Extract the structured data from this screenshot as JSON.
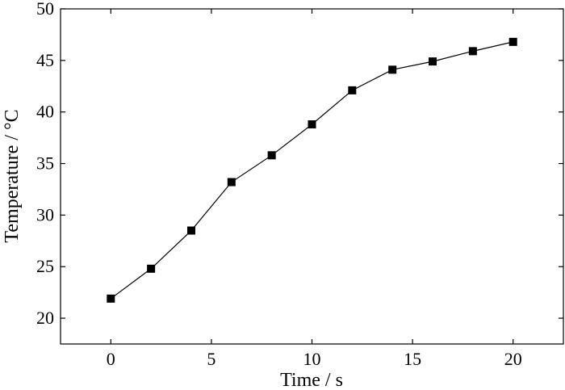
{
  "chart_data": {
    "type": "line",
    "xlabel": "Time / s",
    "ylabel": "Temperature / °C",
    "xlim": [
      -2.5,
      22.5
    ],
    "ylim": [
      17.5,
      50
    ],
    "x_ticks": [
      0,
      5,
      10,
      15,
      20
    ],
    "y_ticks": [
      20,
      25,
      30,
      35,
      40,
      45,
      50
    ],
    "grid": false,
    "marker": "square",
    "series": [
      {
        "x": [
          0,
          2,
          4,
          6,
          8,
          10,
          12,
          14,
          16,
          18,
          20
        ],
        "values": [
          21.9,
          24.8,
          28.5,
          33.2,
          35.8,
          38.8,
          42.1,
          44.1,
          44.9,
          45.9,
          46.8
        ],
        "color": "#000000"
      }
    ]
  }
}
